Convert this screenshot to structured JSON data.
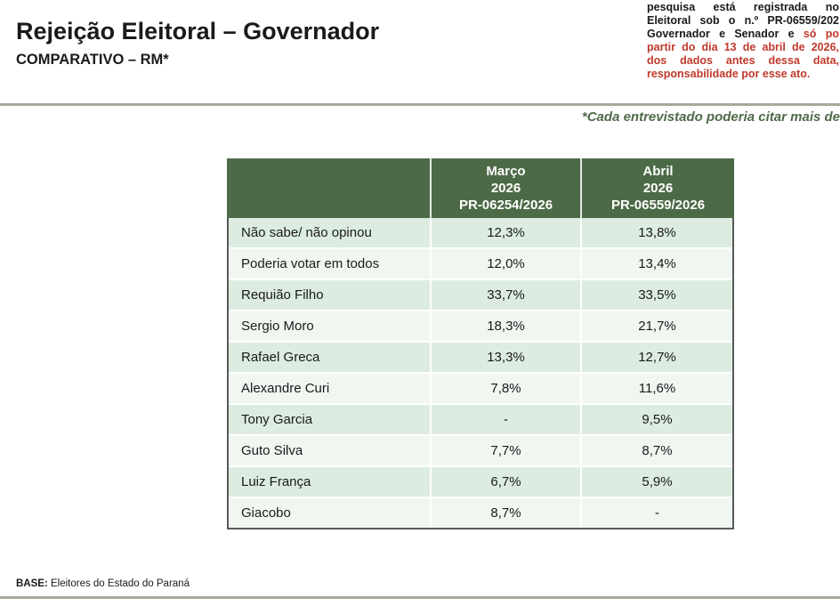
{
  "header": {
    "title": "Rejeição Eleitoral – Governador",
    "subtitle": "COMPARATIVO – RM*"
  },
  "disclaimer": {
    "line1": "pesquisa está registrada no",
    "line2": "Eleitoral sob o n.º PR-06559/202",
    "line3_black": "Governador e Senador e ",
    "line3_red": "só po",
    "line4": "partir do dia 13 de abril de 2026,",
    "line5": "dos dados antes dessa data,",
    "line6": "responsabilidade por esse ato."
  },
  "note": "*Cada entrevistado poderia citar mais de",
  "footer": {
    "base_label": "BASE:",
    "base_text": " Eleitores do Estado do Paraná"
  },
  "table": {
    "header": {
      "march": "Março\n2026\nPR-06254/2026",
      "april": "Abril\n2026\nPR-06559/2026"
    },
    "rows": [
      {
        "label": "Não sabe/ não opinou",
        "march": "12,3%",
        "april": "13,8%"
      },
      {
        "label": "Poderia votar em todos",
        "march": "12,0%",
        "april": "13,4%"
      },
      {
        "label": "Requião Filho",
        "march": "33,7%",
        "april": "33,5%"
      },
      {
        "label": "Sergio Moro",
        "march": "18,3%",
        "april": "21,7%"
      },
      {
        "label": "Rafael Greca",
        "march": "13,3%",
        "april": "12,7%"
      },
      {
        "label": "Alexandre Curi",
        "march": "7,8%",
        "april": "11,6%"
      },
      {
        "label": "Tony Garcia",
        "march": "-",
        "april": "9,5%"
      },
      {
        "label": "Guto Silva",
        "march": "7,7%",
        "april": "8,7%"
      },
      {
        "label": "Luiz França",
        "march": "6,7%",
        "april": "5,9%"
      },
      {
        "label": "Giacobo",
        "march": "8,7%",
        "april": "-"
      }
    ]
  },
  "colors": {
    "header_green": "#4d6a47",
    "row_stripe_dark": "#ddecE1",
    "row_stripe_light": "#f0f7f1",
    "rule_gray_green": "#a6ab9b",
    "alert_red": "#c0392b",
    "note_green": "#4f6b49",
    "table_border": "#595959",
    "text": "#1a1a1a"
  }
}
